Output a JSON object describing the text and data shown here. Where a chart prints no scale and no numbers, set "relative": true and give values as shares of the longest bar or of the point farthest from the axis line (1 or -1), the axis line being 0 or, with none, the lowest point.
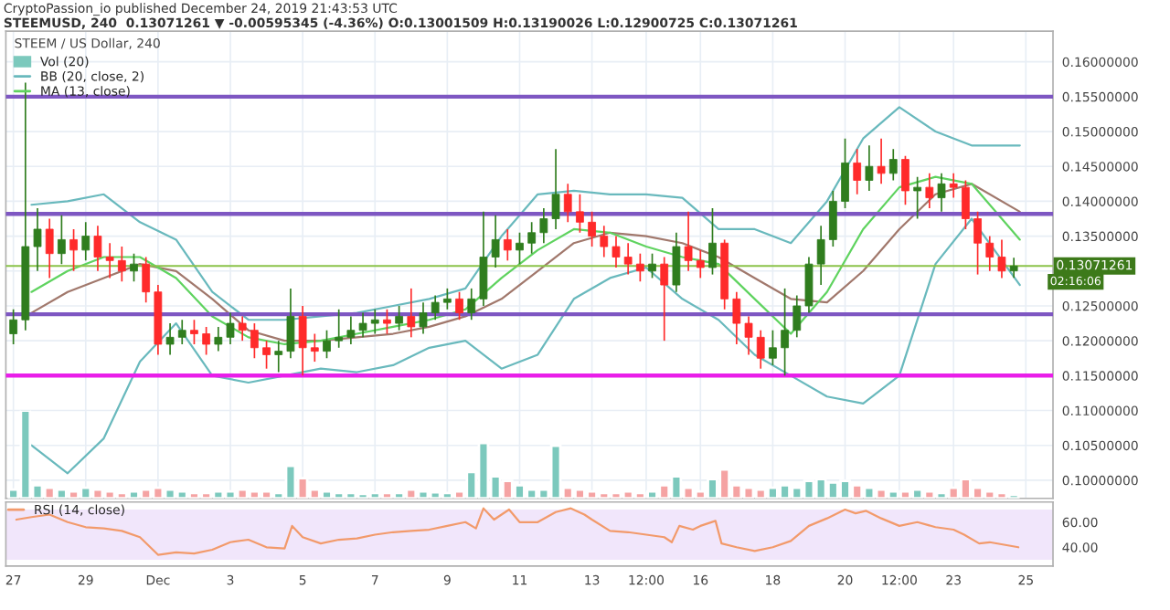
{
  "chart_data": [
    {
      "type": "candlestick",
      "title": "STEEM / US Dollar, 240",
      "annotations": [
        "CryptoPassion_io published December 24, 2019 21:43:53 UTC",
        "STEEMUSD, 240  0.13071261 ▼ -0.00595345 (-4.36%) O:0.13001509 H:0.13190026 L:0.12900725 C:0.13071261",
        {
          "text": "02:16:06",
          "x": "2019-12-25T16:00",
          "y": 0.13071261
        }
      ],
      "x": [
        "2019-11-27T00:00",
        "2019-11-27T08:00",
        "2019-11-27T16:00",
        "2019-11-28T00:00",
        "2019-11-28T08:00",
        "2019-11-28T16:00",
        "2019-11-29T00:00",
        "2019-11-29T08:00",
        "2019-11-29T16:00",
        "2019-11-30T00:00",
        "2019-11-30T08:00",
        "2019-11-30T16:00",
        "2019-12-01T00:00",
        "2019-12-01T08:00",
        "2019-12-01T16:00",
        "2019-12-02T00:00",
        "2019-12-02T08:00",
        "2019-12-02T16:00",
        "2019-12-03T00:00",
        "2019-12-03T08:00",
        "2019-12-03T16:00",
        "2019-12-04T00:00",
        "2019-12-04T08:00",
        "2019-12-04T16:00",
        "2019-12-05T00:00",
        "2019-12-05T08:00",
        "2019-12-05T16:00",
        "2019-12-06T00:00",
        "2019-12-06T08:00",
        "2019-12-06T16:00",
        "2019-12-07T00:00",
        "2019-12-07T08:00",
        "2019-12-07T16:00",
        "2019-12-08T00:00",
        "2019-12-08T08:00",
        "2019-12-08T16:00",
        "2019-12-09T00:00",
        "2019-12-09T08:00",
        "2019-12-09T16:00",
        "2019-12-10T00:00",
        "2019-12-10T08:00",
        "2019-12-10T16:00",
        "2019-12-11T00:00",
        "2019-12-11T08:00",
        "2019-12-11T16:00",
        "2019-12-12T00:00",
        "2019-12-12T08:00",
        "2019-12-12T16:00",
        "2019-12-13T00:00",
        "2019-12-13T08:00",
        "2019-12-13T16:00",
        "2019-12-14T00:00",
        "2019-12-14T08:00",
        "2019-12-14T16:00",
        "2019-12-15T00:00",
        "2019-12-15T08:00",
        "2019-12-15T16:00",
        "2019-12-16T00:00",
        "2019-12-16T08:00",
        "2019-12-16T16:00",
        "2019-12-17T00:00",
        "2019-12-17T08:00",
        "2019-12-17T16:00",
        "2019-12-18T00:00",
        "2019-12-18T08:00",
        "2019-12-18T16:00",
        "2019-12-19T00:00",
        "2019-12-19T08:00",
        "2019-12-19T16:00",
        "2019-12-20T00:00",
        "2019-12-20T08:00",
        "2019-12-20T16:00",
        "2019-12-21T00:00",
        "2019-12-21T08:00",
        "2019-12-21T16:00",
        "2019-12-22T00:00",
        "2019-12-22T08:00",
        "2019-12-22T16:00",
        "2019-12-23T00:00",
        "2019-12-23T08:00",
        "2019-12-23T16:00",
        "2019-12-24T00:00",
        "2019-12-24T08:00",
        "2019-12-24T16:00"
      ],
      "ohlc": [
        [
          0.121,
          0.1245,
          0.1195,
          0.123
        ],
        [
          0.123,
          0.157,
          0.1215,
          0.1335
        ],
        [
          0.1335,
          0.139,
          0.13,
          0.136
        ],
        [
          0.136,
          0.1375,
          0.129,
          0.1325
        ],
        [
          0.1325,
          0.138,
          0.131,
          0.1345
        ],
        [
          0.1345,
          0.136,
          0.13,
          0.133
        ],
        [
          0.133,
          0.137,
          0.1315,
          0.135
        ],
        [
          0.135,
          0.1365,
          0.13,
          0.132
        ],
        [
          0.132,
          0.134,
          0.129,
          0.1315
        ],
        [
          0.1315,
          0.1335,
          0.1285,
          0.13
        ],
        [
          0.13,
          0.1325,
          0.1285,
          0.131
        ],
        [
          0.131,
          0.132,
          0.1255,
          0.127
        ],
        [
          0.127,
          0.128,
          0.118,
          0.1195
        ],
        [
          0.1195,
          0.1225,
          0.118,
          0.1205
        ],
        [
          0.1205,
          0.123,
          0.1195,
          0.1215
        ],
        [
          0.1215,
          0.123,
          0.1195,
          0.121
        ],
        [
          0.121,
          0.122,
          0.118,
          0.1195
        ],
        [
          0.1195,
          0.122,
          0.1185,
          0.1205
        ],
        [
          0.1205,
          0.124,
          0.1195,
          0.1225
        ],
        [
          0.1225,
          0.1235,
          0.12,
          0.1215
        ],
        [
          0.1215,
          0.1225,
          0.1175,
          0.119
        ],
        [
          0.119,
          0.12,
          0.116,
          0.118
        ],
        [
          0.118,
          0.12,
          0.1155,
          0.1185
        ],
        [
          0.1185,
          0.1275,
          0.1175,
          0.1235
        ],
        [
          0.1235,
          0.125,
          0.115,
          0.119
        ],
        [
          0.119,
          0.121,
          0.117,
          0.1185
        ],
        [
          0.1185,
          0.1215,
          0.1175,
          0.12
        ],
        [
          0.12,
          0.1245,
          0.119,
          0.1205
        ],
        [
          0.1205,
          0.1235,
          0.1195,
          0.1215
        ],
        [
          0.1215,
          0.124,
          0.1205,
          0.1225
        ],
        [
          0.1225,
          0.1245,
          0.121,
          0.123
        ],
        [
          0.123,
          0.1245,
          0.121,
          0.1225
        ],
        [
          0.1225,
          0.125,
          0.1215,
          0.1235
        ],
        [
          0.1235,
          0.1275,
          0.1205,
          0.122
        ],
        [
          0.122,
          0.1255,
          0.121,
          0.124
        ],
        [
          0.124,
          0.1265,
          0.123,
          0.1255
        ],
        [
          0.1255,
          0.1275,
          0.1245,
          0.126
        ],
        [
          0.126,
          0.127,
          0.123,
          0.124
        ],
        [
          0.124,
          0.1275,
          0.123,
          0.126
        ],
        [
          0.126,
          0.1385,
          0.125,
          0.132
        ],
        [
          0.132,
          0.138,
          0.1305,
          0.1345
        ],
        [
          0.1345,
          0.136,
          0.1315,
          0.133
        ],
        [
          0.133,
          0.1355,
          0.131,
          0.134
        ],
        [
          0.134,
          0.137,
          0.1325,
          0.1355
        ],
        [
          0.1355,
          0.139,
          0.134,
          0.1375
        ],
        [
          0.1375,
          0.1475,
          0.136,
          0.141
        ],
        [
          0.141,
          0.1425,
          0.137,
          0.1385
        ],
        [
          0.1385,
          0.141,
          0.1355,
          0.137
        ],
        [
          0.137,
          0.1385,
          0.1335,
          0.135
        ],
        [
          0.135,
          0.1365,
          0.132,
          0.1335
        ],
        [
          0.1335,
          0.135,
          0.1305,
          0.132
        ],
        [
          0.132,
          0.134,
          0.1295,
          0.131
        ],
        [
          0.131,
          0.1325,
          0.1285,
          0.13
        ],
        [
          0.13,
          0.1325,
          0.129,
          0.131
        ],
        [
          0.131,
          0.132,
          0.12,
          0.128
        ],
        [
          0.128,
          0.1355,
          0.127,
          0.1335
        ],
        [
          0.1335,
          0.1385,
          0.13,
          0.1315
        ],
        [
          0.1315,
          0.133,
          0.129,
          0.1305
        ],
        [
          0.1305,
          0.139,
          0.1295,
          0.134
        ],
        [
          0.134,
          0.1345,
          0.1245,
          0.126
        ],
        [
          0.126,
          0.127,
          0.1195,
          0.1225
        ],
        [
          0.1225,
          0.1235,
          0.118,
          0.1205
        ],
        [
          0.1205,
          0.1215,
          0.116,
          0.1175
        ],
        [
          0.1175,
          0.1215,
          0.1165,
          0.119
        ],
        [
          0.119,
          0.1275,
          0.115,
          0.1215
        ],
        [
          0.1215,
          0.1265,
          0.1205,
          0.125
        ],
        [
          0.125,
          0.132,
          0.124,
          0.131
        ],
        [
          0.131,
          0.1365,
          0.128,
          0.1345
        ],
        [
          0.1345,
          0.1415,
          0.1335,
          0.14
        ],
        [
          0.14,
          0.149,
          0.139,
          0.1455
        ],
        [
          0.1455,
          0.1475,
          0.141,
          0.143
        ],
        [
          0.143,
          0.148,
          0.1415,
          0.145
        ],
        [
          0.145,
          0.149,
          0.1425,
          0.144
        ],
        [
          0.144,
          0.1475,
          0.143,
          0.146
        ],
        [
          0.146,
          0.1465,
          0.1395,
          0.1415
        ],
        [
          0.1415,
          0.1435,
          0.1375,
          0.142
        ],
        [
          0.142,
          0.144,
          0.139,
          0.1405
        ],
        [
          0.1405,
          0.144,
          0.1385,
          0.1425
        ],
        [
          0.1425,
          0.144,
          0.1405,
          0.142
        ],
        [
          0.142,
          0.143,
          0.136,
          0.1375
        ],
        [
          0.1375,
          0.1385,
          0.1295,
          0.134
        ],
        [
          0.134,
          0.135,
          0.13,
          0.132
        ],
        [
          0.132,
          0.1345,
          0.129,
          0.13
        ],
        [
          0.13001509,
          0.13190026,
          0.12900725,
          0.13071261
        ]
      ],
      "colors": [
        "#2f7d1e",
        "#2f7d1e",
        "#2f7d1e",
        "#ff2a2a",
        "#2f7d1e",
        "#ff2a2a",
        "#2f7d1e",
        "#ff2a2a",
        "#ff2a2a",
        "#ff2a2a",
        "#2f7d1e",
        "#ff2a2a",
        "#ff2a2a",
        "#2f7d1e",
        "#2f7d1e",
        "#ff2a2a",
        "#ff2a2a",
        "#2f7d1e",
        "#2f7d1e",
        "#ff2a2a",
        "#ff2a2a",
        "#ff2a2a",
        "#2f7d1e",
        "#2f7d1e",
        "#ff2a2a",
        "#ff2a2a",
        "#2f7d1e",
        "#2f7d1e",
        "#2f7d1e",
        "#2f7d1e",
        "#2f7d1e",
        "#ff2a2a",
        "#2f7d1e",
        "#ff2a2a",
        "#2f7d1e",
        "#2f7d1e",
        "#2f7d1e",
        "#ff2a2a",
        "#2f7d1e",
        "#2f7d1e",
        "#2f7d1e",
        "#ff2a2a",
        "#2f7d1e",
        "#2f7d1e",
        "#2f7d1e",
        "#2f7d1e",
        "#ff2a2a",
        "#ff2a2a",
        "#ff2a2a",
        "#ff2a2a",
        "#ff2a2a",
        "#ff2a2a",
        "#ff2a2a",
        "#2f7d1e",
        "#ff2a2a",
        "#2f7d1e",
        "#ff2a2a",
        "#ff2a2a",
        "#2f7d1e",
        "#ff2a2a",
        "#ff2a2a",
        "#ff2a2a",
        "#ff2a2a",
        "#2f7d1e",
        "#2f7d1e",
        "#2f7d1e",
        "#2f7d1e",
        "#2f7d1e",
        "#2f7d1e",
        "#2f7d1e",
        "#ff2a2a",
        "#2f7d1e",
        "#ff2a2a",
        "#2f7d1e",
        "#ff2a2a",
        "#2f7d1e",
        "#ff2a2a",
        "#2f7d1e",
        "#ff2a2a",
        "#ff2a2a",
        "#ff2a2a",
        "#ff2a2a",
        "#ff2a2a",
        "#2f7d1e"
      ],
      "series": [
        {
          "type": "line",
          "name": "BB (20, close, 2)",
          "color": "#69b9bd",
          "x": [
            "2019-11-27T12:00",
            "2019-11-28T12:00",
            "2019-11-29T12:00",
            "2019-11-30T12:00",
            "2019-12-01T12:00",
            "2019-12-02T12:00",
            "2019-12-03T12:00",
            "2019-12-04T12:00",
            "2019-12-05T12:00",
            "2019-12-06T12:00",
            "2019-12-07T12:00",
            "2019-12-08T12:00",
            "2019-12-09T12:00",
            "2019-12-10T12:00",
            "2019-12-11T12:00",
            "2019-12-12T12:00",
            "2019-12-13T12:00",
            "2019-12-14T12:00",
            "2019-12-15T12:00",
            "2019-12-16T12:00",
            "2019-12-17T12:00",
            "2019-12-18T12:00",
            "2019-12-19T12:00",
            "2019-12-20T12:00",
            "2019-12-21T12:00",
            "2019-12-22T12:00",
            "2019-12-23T12:00",
            "2019-12-24T20:00"
          ],
          "values": [
            0.1395,
            0.14,
            0.141,
            0.137,
            0.1345,
            0.127,
            0.123,
            0.123,
            0.1235,
            0.124,
            0.125,
            0.126,
            0.1275,
            0.135,
            0.141,
            0.1415,
            0.141,
            0.141,
            0.1405,
            0.136,
            0.136,
            0.134,
            0.14,
            0.149,
            0.1535,
            0.15,
            0.148,
            0.148
          ]
        },
        {
          "type": "line",
          "color": "#69b9bd",
          "x": [
            "2019-11-27T12:00",
            "2019-11-28T12:00",
            "2019-11-29T12:00",
            "2019-11-30T12:00",
            "2019-12-01T12:00",
            "2019-12-02T12:00",
            "2019-12-03T12:00",
            "2019-12-04T12:00",
            "2019-12-05T12:00",
            "2019-12-06T12:00",
            "2019-12-07T12:00",
            "2019-12-08T12:00",
            "2019-12-09T12:00",
            "2019-12-10T12:00",
            "2019-12-11T12:00",
            "2019-12-12T12:00",
            "2019-12-13T12:00",
            "2019-12-14T12:00",
            "2019-12-15T12:00",
            "2019-12-16T12:00",
            "2019-12-17T12:00",
            "2019-12-18T12:00",
            "2019-12-19T12:00",
            "2019-12-20T12:00",
            "2019-12-21T12:00",
            "2019-12-22T12:00",
            "2019-12-23T12:00",
            "2019-12-24T20:00"
          ],
          "values": [
            0.105,
            0.101,
            0.106,
            0.117,
            0.1225,
            0.115,
            0.114,
            0.115,
            0.116,
            0.1155,
            0.1165,
            0.119,
            0.12,
            0.116,
            0.118,
            0.126,
            0.129,
            0.1305,
            0.126,
            0.123,
            0.118,
            0.115,
            0.112,
            0.111,
            0.115,
            0.131,
            0.1375,
            0.128
          ]
        },
        {
          "type": "line",
          "color": "#a1786c",
          "x": [
            "2019-11-27T12:00",
            "2019-11-28T12:00",
            "2019-11-29T12:00",
            "2019-11-30T12:00",
            "2019-12-01T12:00",
            "2019-12-02T12:00",
            "2019-12-03T12:00",
            "2019-12-04T12:00",
            "2019-12-05T12:00",
            "2019-12-06T12:00",
            "2019-12-07T12:00",
            "2019-12-08T12:00",
            "2019-12-09T12:00",
            "2019-12-10T12:00",
            "2019-12-11T12:00",
            "2019-12-12T12:00",
            "2019-12-13T12:00",
            "2019-12-14T12:00",
            "2019-12-15T12:00",
            "2019-12-16T12:00",
            "2019-12-17T12:00",
            "2019-12-18T12:00",
            "2019-12-19T12:00",
            "2019-12-20T12:00",
            "2019-12-21T12:00",
            "2019-12-22T12:00",
            "2019-12-23T12:00",
            "2019-12-24T20:00"
          ],
          "values": [
            0.124,
            0.127,
            0.129,
            0.131,
            0.13,
            0.126,
            0.1215,
            0.12,
            0.12,
            0.1205,
            0.121,
            0.122,
            0.1235,
            0.126,
            0.13,
            0.134,
            0.1355,
            0.135,
            0.134,
            0.132,
            0.129,
            0.126,
            0.1255,
            0.13,
            0.136,
            0.141,
            0.1425,
            0.1385
          ]
        },
        {
          "type": "line",
          "name": "MA (13, close)",
          "color": "#5fd35f",
          "x": [
            "2019-11-27T12:00",
            "2019-11-28T12:00",
            "2019-11-29T12:00",
            "2019-11-30T12:00",
            "2019-12-01T12:00",
            "2019-12-02T12:00",
            "2019-12-03T12:00",
            "2019-12-04T12:00",
            "2019-12-05T12:00",
            "2019-12-06T12:00",
            "2019-12-07T12:00",
            "2019-12-08T12:00",
            "2019-12-09T12:00",
            "2019-12-10T12:00",
            "2019-12-11T12:00",
            "2019-12-12T12:00",
            "2019-12-13T12:00",
            "2019-12-14T12:00",
            "2019-12-15T12:00",
            "2019-12-16T12:00",
            "2019-12-17T12:00",
            "2019-12-18T12:00",
            "2019-12-19T12:00",
            "2019-12-20T12:00",
            "2019-12-21T12:00",
            "2019-12-22T12:00",
            "2019-12-23T12:00",
            "2019-12-24T20:00"
          ],
          "values": [
            0.127,
            0.13,
            0.132,
            0.132,
            0.129,
            0.1235,
            0.1205,
            0.1195,
            0.12,
            0.121,
            0.122,
            0.123,
            0.1245,
            0.129,
            0.133,
            0.136,
            0.1355,
            0.1335,
            0.132,
            0.131,
            0.126,
            0.121,
            0.127,
            0.136,
            0.142,
            0.1435,
            0.1425,
            0.1345
          ]
        }
      ],
      "ref_lines": [
        {
          "axis": "y",
          "value": 0.155,
          "color": "#7e57c2"
        },
        {
          "axis": "y",
          "value": 0.1382,
          "color": "#7e57c2"
        },
        {
          "axis": "y",
          "value": 0.1238,
          "color": "#7e57c2"
        },
        {
          "axis": "y",
          "value": 0.115,
          "color": "#e91ee9"
        },
        {
          "axis": "y",
          "value": 0.13071261,
          "label": "0.13071261",
          "color": "#8bc34a"
        }
      ],
      "xlim": [
        "2019-11-26T19:00",
        "2019-12-25T18:00"
      ],
      "xticks": [
        {
          "value": "2019-11-27",
          "label": null
        },
        {
          "value": "2019-11-29",
          "label": null
        },
        {
          "value": "2019-12-01",
          "label": null
        },
        {
          "value": "2019-12-03",
          "label": null
        },
        {
          "value": "2019-12-05",
          "label": null
        },
        {
          "value": "2019-12-07",
          "label": null
        },
        {
          "value": "2019-12-09",
          "label": null
        },
        {
          "value": "2019-12-11",
          "label": null
        },
        {
          "value": "2019-12-13",
          "label": null
        },
        {
          "value": "2019-12-14T12:00",
          "label": null
        },
        {
          "value": "2019-12-16",
          "label": null
        },
        {
          "value": "2019-12-18",
          "label": null
        },
        {
          "value": "2019-12-20",
          "label": null
        },
        {
          "value": "2019-12-21T12:00",
          "label": null
        },
        {
          "value": "2019-12-23",
          "label": null
        },
        {
          "value": "2019-12-25",
          "label": null
        }
      ],
      "ylim": [
        0.0974,
        0.1644
      ],
      "yticks": [
        {
          "value": 0.1,
          "label": "0.10000000"
        },
        {
          "value": 0.105,
          "label": "0.10500000"
        },
        {
          "value": 0.11,
          "label": "0.11000000"
        },
        {
          "value": 0.115,
          "label": "0.11500000"
        },
        {
          "value": 0.12,
          "label": "0.12000000"
        },
        {
          "value": 0.125,
          "label": "0.12500000"
        },
        {
          "value": 0.13,
          "label": null
        },
        {
          "value": 0.135,
          "label": "0.13500000"
        },
        {
          "value": 0.14,
          "label": "0.14000000"
        },
        {
          "value": 0.145,
          "label": "0.14500000"
        },
        {
          "value": 0.15,
          "label": "0.15000000"
        },
        {
          "value": 0.155,
          "label": "0.15500000"
        },
        {
          "value": 0.16,
          "label": "0.16000000"
        }
      ],
      "tick_labels": "y",
      "grid": true,
      "legend": "top left"
    },
    {
      "type": "bar",
      "relative": true,
      "tick_labels": false,
      "legend": "top left",
      "x": [
        "2019-11-27T00:00",
        "2019-11-27T08:00",
        "2019-11-27T16:00",
        "2019-11-28T00:00",
        "2019-11-28T08:00",
        "2019-11-28T16:00",
        "2019-11-29T00:00",
        "2019-11-29T08:00",
        "2019-11-29T16:00",
        "2019-11-30T00:00",
        "2019-11-30T08:00",
        "2019-11-30T16:00",
        "2019-12-01T00:00",
        "2019-12-01T08:00",
        "2019-12-01T16:00",
        "2019-12-02T00:00",
        "2019-12-02T08:00",
        "2019-12-02T16:00",
        "2019-12-03T00:00",
        "2019-12-03T08:00",
        "2019-12-03T16:00",
        "2019-12-04T00:00",
        "2019-12-04T08:00",
        "2019-12-04T16:00",
        "2019-12-05T00:00",
        "2019-12-05T08:00",
        "2019-12-05T16:00",
        "2019-12-06T00:00",
        "2019-12-06T08:00",
        "2019-12-06T16:00",
        "2019-12-07T00:00",
        "2019-12-07T08:00",
        "2019-12-07T16:00",
        "2019-12-08T00:00",
        "2019-12-08T08:00",
        "2019-12-08T16:00",
        "2019-12-09T00:00",
        "2019-12-09T08:00",
        "2019-12-09T16:00",
        "2019-12-10T00:00",
        "2019-12-10T08:00",
        "2019-12-10T16:00",
        "2019-12-11T00:00",
        "2019-12-11T08:00",
        "2019-12-11T16:00",
        "2019-12-12T00:00",
        "2019-12-12T08:00",
        "2019-12-12T16:00",
        "2019-12-13T00:00",
        "2019-12-13T08:00",
        "2019-12-13T16:00",
        "2019-12-14T00:00",
        "2019-12-14T08:00",
        "2019-12-14T16:00",
        "2019-12-15T00:00",
        "2019-12-15T08:00",
        "2019-12-15T16:00",
        "2019-12-16T00:00",
        "2019-12-16T08:00",
        "2019-12-16T16:00",
        "2019-12-17T00:00",
        "2019-12-17T08:00",
        "2019-12-17T16:00",
        "2019-12-18T00:00",
        "2019-12-18T08:00",
        "2019-12-18T16:00",
        "2019-12-19T00:00",
        "2019-12-19T08:00",
        "2019-12-19T16:00",
        "2019-12-20T00:00",
        "2019-12-20T08:00",
        "2019-12-20T16:00",
        "2019-12-21T00:00",
        "2019-12-21T08:00",
        "2019-12-21T16:00",
        "2019-12-22T00:00",
        "2019-12-22T08:00",
        "2019-12-22T16:00",
        "2019-12-23T00:00",
        "2019-12-23T08:00",
        "2019-12-23T16:00",
        "2019-12-24T00:00",
        "2019-12-24T08:00",
        "2019-12-24T16:00"
      ],
      "xlim": [
        "2019-11-26T19:00",
        "2019-12-25T18:00"
      ],
      "series": [
        {
          "name": "Vol (20)",
          "color": "#7cc9bd",
          "values": [
            0.1,
            1.0,
            0.15,
            0.12,
            0.1,
            0.08,
            0.12,
            0.1,
            0.08,
            0.06,
            0.08,
            0.1,
            0.12,
            0.1,
            0.08,
            0.06,
            0.06,
            0.08,
            0.08,
            0.1,
            0.08,
            0.08,
            0.06,
            0.37,
            0.23,
            0.1,
            0.08,
            0.06,
            0.06,
            0.05,
            0.06,
            0.06,
            0.06,
            0.1,
            0.08,
            0.07,
            0.06,
            0.08,
            0.3,
            0.63,
            0.25,
            0.2,
            0.15,
            0.1,
            0.1,
            0.6,
            0.12,
            0.1,
            0.08,
            0.06,
            0.06,
            0.08,
            0.06,
            0.08,
            0.15,
            0.25,
            0.12,
            0.08,
            0.22,
            0.33,
            0.15,
            0.12,
            0.1,
            0.12,
            0.15,
            0.12,
            0.2,
            0.22,
            0.18,
            0.2,
            0.15,
            0.12,
            0.1,
            0.08,
            0.08,
            0.1,
            0.08,
            0.06,
            0.12,
            0.22,
            0.12,
            0.08,
            0.06,
            0.04
          ],
          "colors": [
            "#7cc9bd",
            "#7cc9bd",
            "#7cc9bd",
            "#f5a3a3",
            "#7cc9bd",
            "#f5a3a3",
            "#7cc9bd",
            "#f5a3a3",
            "#f5a3a3",
            "#f5a3a3",
            "#7cc9bd",
            "#f5a3a3",
            "#f5a3a3",
            "#7cc9bd",
            "#7cc9bd",
            "#f5a3a3",
            "#f5a3a3",
            "#7cc9bd",
            "#7cc9bd",
            "#f5a3a3",
            "#f5a3a3",
            "#f5a3a3",
            "#7cc9bd",
            "#7cc9bd",
            "#f5a3a3",
            "#f5a3a3",
            "#7cc9bd",
            "#7cc9bd",
            "#7cc9bd",
            "#7cc9bd",
            "#7cc9bd",
            "#f5a3a3",
            "#7cc9bd",
            "#f5a3a3",
            "#7cc9bd",
            "#7cc9bd",
            "#7cc9bd",
            "#f5a3a3",
            "#7cc9bd",
            "#7cc9bd",
            "#7cc9bd",
            "#f5a3a3",
            "#7cc9bd",
            "#7cc9bd",
            "#7cc9bd",
            "#7cc9bd",
            "#f5a3a3",
            "#f5a3a3",
            "#f5a3a3",
            "#f5a3a3",
            "#f5a3a3",
            "#f5a3a3",
            "#f5a3a3",
            "#7cc9bd",
            "#f5a3a3",
            "#7cc9bd",
            "#f5a3a3",
            "#f5a3a3",
            "#7cc9bd",
            "#f5a3a3",
            "#f5a3a3",
            "#f5a3a3",
            "#f5a3a3",
            "#7cc9bd",
            "#7cc9bd",
            "#7cc9bd",
            "#7cc9bd",
            "#7cc9bd",
            "#7cc9bd",
            "#7cc9bd",
            "#f5a3a3",
            "#7cc9bd",
            "#f5a3a3",
            "#7cc9bd",
            "#f5a3a3",
            "#7cc9bd",
            "#f5a3a3",
            "#7cc9bd",
            "#f5a3a3",
            "#f5a3a3",
            "#f5a3a3",
            "#f5a3a3",
            "#f5a3a3",
            "#7cc9bd"
          ]
        }
      ]
    },
    {
      "type": "line",
      "legend": "top left",
      "series": [
        {
          "name": "RSI (14, close)",
          "color": "#f29a6b",
          "x": [
            "2019-11-27T02:00",
            "2019-11-27T12:00",
            "2019-11-28T00:00",
            "2019-11-28T12:00",
            "2019-11-29T00:00",
            "2019-11-29T12:00",
            "2019-11-30T00:00",
            "2019-11-30T12:00",
            "2019-12-01T00:00",
            "2019-12-01T12:00",
            "2019-12-02T00:00",
            "2019-12-02T12:00",
            "2019-12-03T00:00",
            "2019-12-03T12:00",
            "2019-12-04T00:00",
            "2019-12-04T12:00",
            "2019-12-04T17:00",
            "2019-12-05T00:00",
            "2019-12-05T12:00",
            "2019-12-06T00:00",
            "2019-12-06T12:00",
            "2019-12-07T00:00",
            "2019-12-07T12:00",
            "2019-12-08T00:00",
            "2019-12-08T12:00",
            "2019-12-09T00:00",
            "2019-12-09T12:00",
            "2019-12-09T19:00",
            "2019-12-10T00:00",
            "2019-12-10T07:00",
            "2019-12-10T17:00",
            "2019-12-11T00:00",
            "2019-12-11T12:00",
            "2019-12-12T00:00",
            "2019-12-12T10:00",
            "2019-12-12T19:00",
            "2019-12-13T00:00",
            "2019-12-13T12:00",
            "2019-12-14T00:00",
            "2019-12-14T12:00",
            "2019-12-15T00:00",
            "2019-12-15T05:00",
            "2019-12-15T10:00",
            "2019-12-15T19:00",
            "2019-12-16T00:00",
            "2019-12-16T10:00",
            "2019-12-16T14:00",
            "2019-12-17T00:00",
            "2019-12-17T12:00",
            "2019-12-18T00:00",
            "2019-12-18T12:00",
            "2019-12-19T00:00",
            "2019-12-19T12:00",
            "2019-12-20T00:00",
            "2019-12-20T07:00",
            "2019-12-20T14:00",
            "2019-12-21T00:00",
            "2019-12-21T12:00",
            "2019-12-22T00:00",
            "2019-12-22T12:00",
            "2019-12-23T00:00",
            "2019-12-23T07:00",
            "2019-12-23T17:00",
            "2019-12-24T00:00",
            "2019-12-24T19:00"
          ],
          "values": [
            62,
            64,
            66,
            60,
            56,
            55,
            53,
            48,
            34,
            36,
            35,
            38,
            44,
            46,
            40,
            39,
            57,
            48,
            43,
            46,
            47,
            50,
            52,
            53,
            54,
            57,
            60,
            55,
            71,
            62,
            70,
            60,
            60,
            68,
            71,
            66,
            62,
            53,
            52,
            50,
            48,
            44,
            57,
            54,
            57,
            61,
            43,
            40,
            37,
            40,
            45,
            57,
            63,
            70,
            67,
            69,
            63,
            57,
            60,
            56,
            54,
            50,
            43,
            44,
            40
          ]
        }
      ],
      "xlim": [
        "2019-11-26T19:00",
        "2019-12-25T18:00"
      ],
      "xticks": [
        {
          "value": "2019-11-27",
          "label": "27"
        },
        {
          "value": "2019-11-29",
          "label": "29"
        },
        {
          "value": "2019-12-01",
          "label": "Dec"
        },
        {
          "value": "2019-12-03",
          "label": "3"
        },
        {
          "value": "2019-12-05",
          "label": "5"
        },
        {
          "value": "2019-12-07",
          "label": "7"
        },
        {
          "value": "2019-12-09",
          "label": "9"
        },
        {
          "value": "2019-12-11",
          "label": "11"
        },
        {
          "value": "2019-12-13",
          "label": "13"
        },
        {
          "value": "2019-12-14T12:00",
          "label": "12:00"
        },
        {
          "value": "2019-12-16",
          "label": "16"
        },
        {
          "value": "2019-12-18",
          "label": "18"
        },
        {
          "value": "2019-12-20",
          "label": "20"
        },
        {
          "value": "2019-12-21T12:00",
          "label": "12:00"
        },
        {
          "value": "2019-12-23",
          "label": "23"
        },
        {
          "value": "2019-12-25",
          "label": "25"
        }
      ],
      "ylim": [
        25,
        76
      ],
      "yticks": [
        {
          "value": 40,
          "label": "40.00"
        },
        {
          "value": 60,
          "label": "60.00"
        }
      ],
      "bands": [
        {
          "axis": "y",
          "from": 30,
          "to": 70,
          "color": "#f1e6fb"
        }
      ]
    }
  ]
}
